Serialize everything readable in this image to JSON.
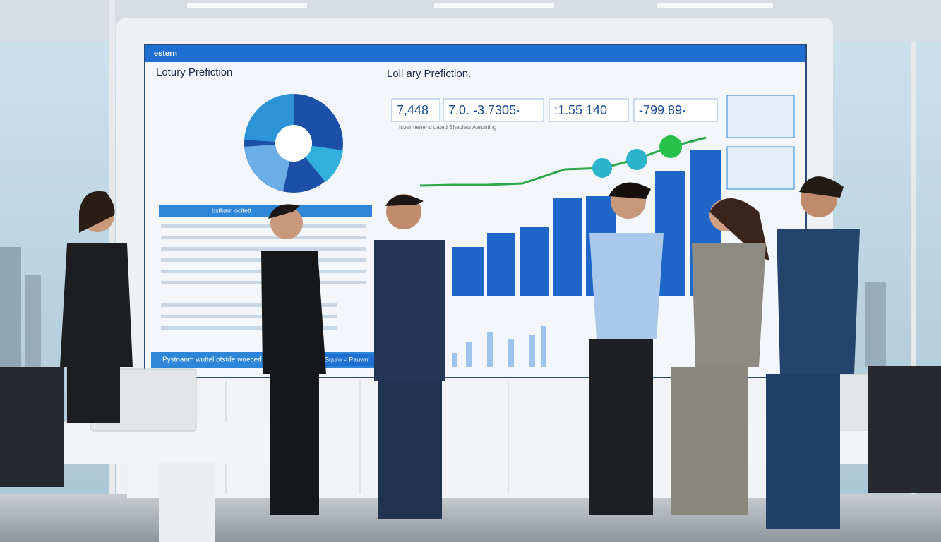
{
  "screen": {
    "brand": "estern",
    "left_title": "Lotury Prefiction",
    "center_title": "Loll ary Prefiction.",
    "stats": [
      "7,448",
      "7.0. -3.7305·",
      ":1.55 140",
      "-799.89·"
    ],
    "chart_caption": "Ispermenend uated Shaulets Aarunting",
    "table_header": "bstham ocitett",
    "footer_left": "Pystnanm wuttel otstde woecerl",
    "footer_right": "Squro < Pauwrr"
  }
}
